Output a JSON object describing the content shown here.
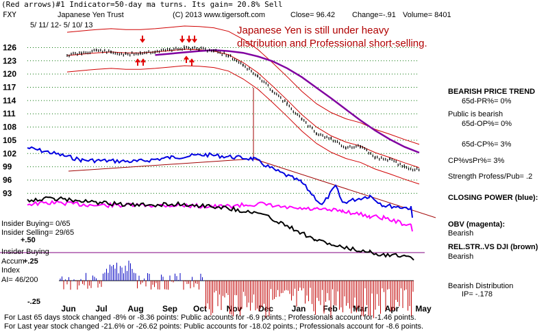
{
  "header": {
    "line1": "(Red arrows)#1 Indicator=50-day ma turns. Its gain= 20.8% Sell",
    "symbol": "FXY",
    "name": "Japanese Yen Trust",
    "copyright": "(C) 2013 www.tigersoft.com",
    "close": "Close=  96.42",
    "change": "Change=-.91",
    "volume": "Volume= 8401",
    "daterange": "5/ 11/ 12-  5/ 10/ 13"
  },
  "headline": {
    "line1": "Japanese Yen is still under heavy",
    "line2": "distribution and Professional short-selling."
  },
  "right_panel": [
    "BEARISH PRICE TREND",
    "65d-PR%= 0%",
    "Public is bearish",
    "65d-OP%= 0%",
    "65d-CP%= 3%",
    "CP%vsPr%=  3%",
    "Strength Profess/Pub= .2",
    "CLOSING POWER (blue):",
    "OBV (magenta):",
    "Bearish",
    "REL.STR..VS DJI (brown)",
    "Bearish",
    "Bearish Distribution",
    "IP= -.178"
  ],
  "left_panel": {
    "insider_buying_count": "Insider Buying= 0/65",
    "insider_selling_count": "Insider Selling= 29/65",
    "plus_50": "+.50",
    "insider_buying_line": "Insider Buying",
    "accum": "Accum",
    "plus_25": "+.25",
    "index": "Index",
    "ai": "AI= 46/200",
    "minus_25": "-.25"
  },
  "footer": {
    "line1": "For Last 65 days stock changed -8% or -8.36 points:  Public accounts for -6.9 points.;  Professionals account for -1.46 points.",
    "line2": "For Last year stock changed -21.6% or -26.62 points:  Public accounts for -18.02 points.;  Professionals account for -8.6 points."
  },
  "colors": {
    "price": "#000000",
    "ma": "#d00000",
    "ma_long": "#8000a0",
    "closing_power": "#0000e0",
    "obv": "#ff00ff",
    "rel_str": "#000000",
    "accum_pos": "#0000c0",
    "accum_neg": "#c00000",
    "grid": "#007000"
  },
  "chart_data": {
    "type": "line",
    "title": "Japanese Yen Trust (FXY) 5/11/12 - 5/10/13",
    "y_ticks": [
      126,
      123,
      120,
      117,
      114,
      111,
      108,
      105,
      102,
      99,
      96,
      93
    ],
    "ylim": [
      91.5,
      127
    ],
    "x_ticks": [
      "Jun",
      "Jul",
      "Aug",
      "Sep",
      "Oct",
      "Nov",
      "Dec",
      "Jan",
      "Feb",
      "Mar",
      "Apr",
      "May"
    ],
    "price_x": [
      0,
      0.5,
      1,
      1.5,
      2,
      2.5,
      3,
      3.5,
      4,
      4.5,
      5,
      5.5,
      6,
      6.5,
      7,
      7.5,
      8,
      8.5,
      9,
      9.5,
      10,
      10.5,
      11,
      11.5,
      12
    ],
    "series": [
      {
        "name": "Price",
        "values": [
          124.3,
          124.7,
          125.4,
          124.9,
          124.4,
          124.8,
          125.1,
          125.5,
          125.9,
          125.7,
          125.3,
          124.2,
          122.1,
          119.4,
          116.3,
          113.2,
          109.7,
          106.6,
          105.3,
          103.4,
          103.6,
          101.1,
          100.6,
          99.0,
          98.2
        ]
      },
      {
        "name": "Short MA",
        "values": [
          124.2,
          124.5,
          124.8,
          125.0,
          124.8,
          124.8,
          125.0,
          125.3,
          125.6,
          125.5,
          125.2,
          124.4,
          122.6,
          120.3,
          117.3,
          114.1,
          110.8,
          108.0,
          106.0,
          104.6,
          103.7,
          102.2,
          101.1,
          99.9,
          98.8
        ]
      },
      {
        "name": "Long MA",
        "values": [
          null,
          null,
          null,
          null,
          null,
          null,
          124.3,
          124.6,
          124.9,
          125.2,
          125.4,
          125.2,
          124.8,
          124.0,
          122.9,
          121.3,
          119.3,
          116.9,
          114.5,
          112.0,
          109.5,
          107.2,
          105.2,
          103.5,
          102.2
        ]
      }
    ],
    "indicators": [
      "Closing Power (blue)",
      "OBV (magenta)",
      "Rel.Str. vs DJI (brown)",
      "Accumulation Index"
    ]
  }
}
